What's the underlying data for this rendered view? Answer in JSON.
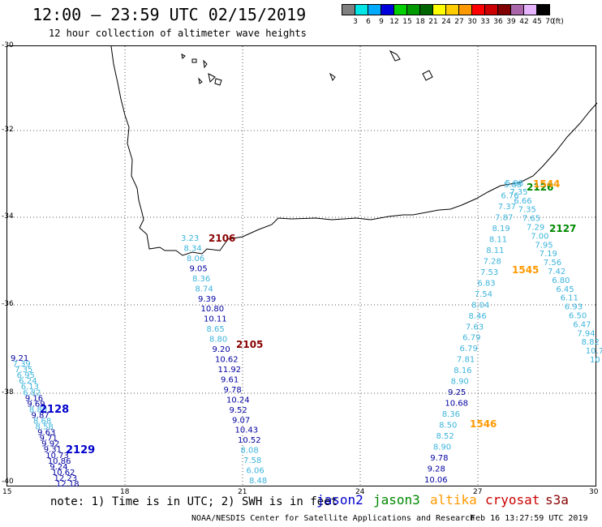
{
  "header": {
    "title": "12:00 – 23:59 UTC 02/15/2019",
    "subtitle": "12 hour collection of altimeter wave heights"
  },
  "color_scale": {
    "unit": "(ft)",
    "bins": [
      {
        "label": "3",
        "color": "#808080"
      },
      {
        "label": "6",
        "color": "#00e6e6"
      },
      {
        "label": "9",
        "color": "#00aaff"
      },
      {
        "label": "12",
        "color": "#0000dd"
      },
      {
        "label": "15",
        "color": "#00d000"
      },
      {
        "label": "18",
        "color": "#009900"
      },
      {
        "label": "21",
        "color": "#006400"
      },
      {
        "label": "24",
        "color": "#ffff00"
      },
      {
        "label": "27",
        "color": "#ffcc00"
      },
      {
        "label": "30",
        "color": "#ff9900"
      },
      {
        "label": "33",
        "color": "#ff0000"
      },
      {
        "label": "36",
        "color": "#cc0000"
      },
      {
        "label": "39",
        "color": "#800000"
      },
      {
        "label": "42",
        "color": "#aa66aa"
      },
      {
        "label": "45",
        "color": "#e6b3ff"
      },
      {
        "label": "70",
        "color": "#000000"
      }
    ]
  },
  "axes": {
    "lat_labels": [
      "-30",
      "-32",
      "-34",
      "-36",
      "-38",
      "-40"
    ],
    "lon_labels": [
      "15",
      "18",
      "21",
      "24",
      "27",
      "30"
    ]
  },
  "tracks": {
    "track_a": {
      "values": [
        "3.23",
        "8.34",
        "8.06",
        "9.05",
        "8.36",
        "8.74",
        "9.39",
        "10.80",
        "10.11",
        "8.65",
        "8.80",
        "9.20",
        "10.62",
        "11.92",
        "9.61",
        "9.78",
        "10.24",
        "9.52",
        "9.07",
        "10.43",
        "10.52",
        "8.08",
        "7.58",
        "6.06",
        "8.48"
      ],
      "times": [
        "2106",
        "2105"
      ]
    },
    "track_b": {
      "values": [
        "9.21",
        "7.39",
        "7.35",
        "6.95",
        "6.24",
        "6.13",
        "6.82",
        "9.16",
        "9.69",
        "8.80",
        "9.87",
        "8.68",
        "8.58",
        "9.63",
        "9.71",
        "9.92",
        "9.31",
        "10.73",
        "10.86",
        "9.24",
        "10.62",
        "12.23",
        "12.18"
      ],
      "times": [
        "2128",
        "2129"
      ]
    },
    "track_c": {
      "values": [
        "5.88",
        "6.76",
        "7.37",
        "7.87",
        "8.19",
        "8.11",
        "8.11",
        "7.28",
        "7.53",
        "6.83",
        "7.54",
        "8.04",
        "8.46",
        "7.63",
        "6.79",
        "6.79",
        "7.81",
        "8.16",
        "8.90",
        "9.25",
        "10.68",
        "8.36",
        "8.50",
        "8.52",
        "8.90",
        "9.78",
        "9.28",
        "10.06"
      ],
      "times": [
        "2126",
        "1544",
        "1545",
        "1546"
      ]
    },
    "track_d": {
      "values": [
        "5.98",
        "7.35",
        "6.66",
        "7.35",
        "7.65",
        "7.29",
        "7.00",
        "7.95",
        "7.19",
        "7.56",
        "7.42",
        "6.80",
        "6.45",
        "6.11",
        "6.93",
        "6.50",
        "6.47",
        "7.94",
        "8.82",
        "10.7",
        "10"
      ],
      "times": [
        "2127"
      ]
    }
  },
  "footer": {
    "note": "note: 1) Time is in UTC; 2) SWH is in feet",
    "satellites": [
      {
        "name": "jason2",
        "color": "#0000cc"
      },
      {
        "name": "jason3",
        "color": "#008800"
      },
      {
        "name": "altika",
        "color": "#ff9900"
      },
      {
        "name": "cryosat",
        "color": "#cc0000"
      },
      {
        "name": "s3a",
        "color": "#880000"
      }
    ],
    "credit": "NOAA/NESDIS Center for Satellite Applications and Research",
    "timestamp": "Feb 16 13:27:59 UTC 2019"
  }
}
